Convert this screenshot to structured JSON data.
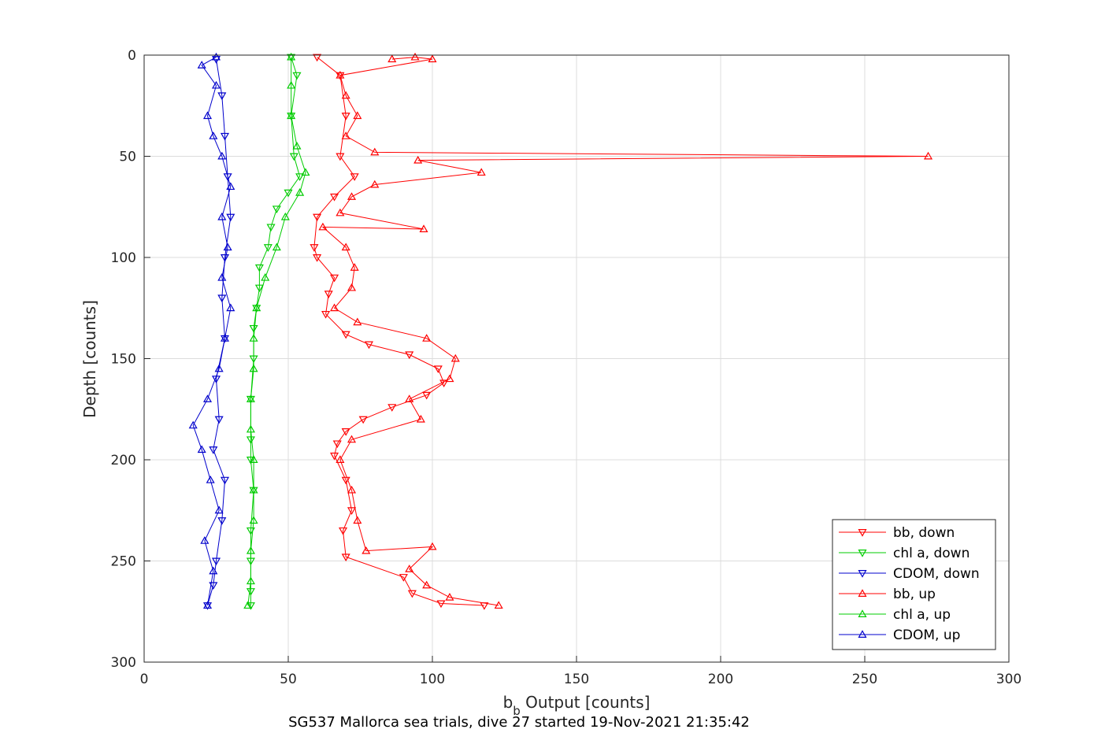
{
  "chart_data": {
    "type": "line",
    "title": "",
    "xlabel_main": "b",
    "xlabel_sub": "b",
    "xlabel_rest": " Output [counts]",
    "ylabel": "Depth [counts]",
    "subtitle": "SG537 Mallorca sea trials, dive 27 started 19-Nov-2021 21:35:42",
    "xlim": [
      0,
      300
    ],
    "ylim": [
      0,
      300
    ],
    "y_reversed": true,
    "grid": true,
    "x_ticks": [
      0,
      50,
      100,
      150,
      200,
      250,
      300
    ],
    "y_ticks": [
      0,
      50,
      100,
      150,
      200,
      250,
      300
    ],
    "legend_position": "bottom-right",
    "series": [
      {
        "name": "bb, down",
        "color": "#ff0000",
        "marker": "triangle-down",
        "points": [
          [
            60,
            1
          ],
          [
            68,
            10
          ],
          [
            70,
            30
          ],
          [
            68,
            50
          ],
          [
            73,
            60
          ],
          [
            66,
            70
          ],
          [
            60,
            80
          ],
          [
            59,
            95
          ],
          [
            60,
            100
          ],
          [
            66,
            110
          ],
          [
            64,
            118
          ],
          [
            63,
            128
          ],
          [
            70,
            138
          ],
          [
            78,
            143
          ],
          [
            92,
            148
          ],
          [
            102,
            155
          ],
          [
            104,
            162
          ],
          [
            98,
            168
          ],
          [
            86,
            174
          ],
          [
            76,
            180
          ],
          [
            70,
            186
          ],
          [
            67,
            192
          ],
          [
            66,
            198
          ],
          [
            70,
            210
          ],
          [
            72,
            225
          ],
          [
            69,
            235
          ],
          [
            70,
            248
          ],
          [
            90,
            258
          ],
          [
            93,
            266
          ],
          [
            103,
            271
          ],
          [
            118,
            272
          ]
        ]
      },
      {
        "name": "chl a, down",
        "color": "#00cc00",
        "marker": "triangle-down",
        "points": [
          [
            51,
            1
          ],
          [
            53,
            10
          ],
          [
            51,
            30
          ],
          [
            52,
            50
          ],
          [
            54,
            60
          ],
          [
            50,
            68
          ],
          [
            46,
            76
          ],
          [
            44,
            85
          ],
          [
            43,
            95
          ],
          [
            40,
            105
          ],
          [
            40,
            115
          ],
          [
            39,
            125
          ],
          [
            38,
            135
          ],
          [
            38,
            150
          ],
          [
            37,
            170
          ],
          [
            37,
            190
          ],
          [
            37,
            200
          ],
          [
            38,
            215
          ],
          [
            37,
            235
          ],
          [
            37,
            250
          ],
          [
            37,
            265
          ],
          [
            37,
            272
          ]
        ]
      },
      {
        "name": "CDOM, down",
        "color": "#0000cc",
        "marker": "triangle-down",
        "points": [
          [
            25,
            2
          ],
          [
            27,
            20
          ],
          [
            28,
            40
          ],
          [
            29,
            60
          ],
          [
            30,
            80
          ],
          [
            28,
            100
          ],
          [
            27,
            120
          ],
          [
            28,
            140
          ],
          [
            25,
            160
          ],
          [
            26,
            180
          ],
          [
            24,
            195
          ],
          [
            28,
            210
          ],
          [
            27,
            230
          ],
          [
            25,
            250
          ],
          [
            24,
            262
          ],
          [
            22,
            272
          ]
        ]
      },
      {
        "name": "bb, up",
        "color": "#ff0000",
        "marker": "triangle-up",
        "points": [
          [
            123,
            272
          ],
          [
            106,
            268
          ],
          [
            98,
            262
          ],
          [
            92,
            254
          ],
          [
            100,
            243
          ],
          [
            77,
            245
          ],
          [
            74,
            230
          ],
          [
            72,
            215
          ],
          [
            68,
            200
          ],
          [
            72,
            190
          ],
          [
            96,
            180
          ],
          [
            92,
            170
          ],
          [
            106,
            160
          ],
          [
            108,
            150
          ],
          [
            98,
            140
          ],
          [
            74,
            132
          ],
          [
            66,
            125
          ],
          [
            72,
            115
          ],
          [
            73,
            105
          ],
          [
            70,
            95
          ],
          [
            62,
            85
          ],
          [
            97,
            86
          ],
          [
            68,
            78
          ],
          [
            72,
            70
          ],
          [
            80,
            64
          ],
          [
            117,
            58
          ],
          [
            95,
            52
          ],
          [
            272,
            50
          ],
          [
            80,
            48
          ],
          [
            70,
            40
          ],
          [
            74,
            30
          ],
          [
            70,
            20
          ],
          [
            68,
            10
          ],
          [
            100,
            2
          ],
          [
            94,
            1
          ],
          [
            86,
            2
          ]
        ]
      },
      {
        "name": "chl a, up",
        "color": "#00cc00",
        "marker": "triangle-up",
        "points": [
          [
            36,
            272
          ],
          [
            37,
            260
          ],
          [
            37,
            245
          ],
          [
            38,
            230
          ],
          [
            38,
            215
          ],
          [
            38,
            200
          ],
          [
            37,
            185
          ],
          [
            37,
            170
          ],
          [
            38,
            155
          ],
          [
            38,
            140
          ],
          [
            39,
            125
          ],
          [
            42,
            110
          ],
          [
            46,
            95
          ],
          [
            49,
            80
          ],
          [
            54,
            68
          ],
          [
            56,
            58
          ],
          [
            53,
            45
          ],
          [
            51,
            30
          ],
          [
            51,
            15
          ],
          [
            51,
            1
          ]
        ]
      },
      {
        "name": "CDOM, up",
        "color": "#0000cc",
        "marker": "triangle-up",
        "points": [
          [
            22,
            272
          ],
          [
            24,
            255
          ],
          [
            21,
            240
          ],
          [
            26,
            225
          ],
          [
            23,
            210
          ],
          [
            20,
            195
          ],
          [
            17,
            183
          ],
          [
            22,
            170
          ],
          [
            26,
            155
          ],
          [
            28,
            140
          ],
          [
            30,
            125
          ],
          [
            27,
            110
          ],
          [
            29,
            95
          ],
          [
            27,
            80
          ],
          [
            30,
            65
          ],
          [
            27,
            50
          ],
          [
            24,
            40
          ],
          [
            22,
            30
          ],
          [
            25,
            15
          ],
          [
            20,
            5
          ],
          [
            25,
            1
          ]
        ]
      }
    ]
  }
}
